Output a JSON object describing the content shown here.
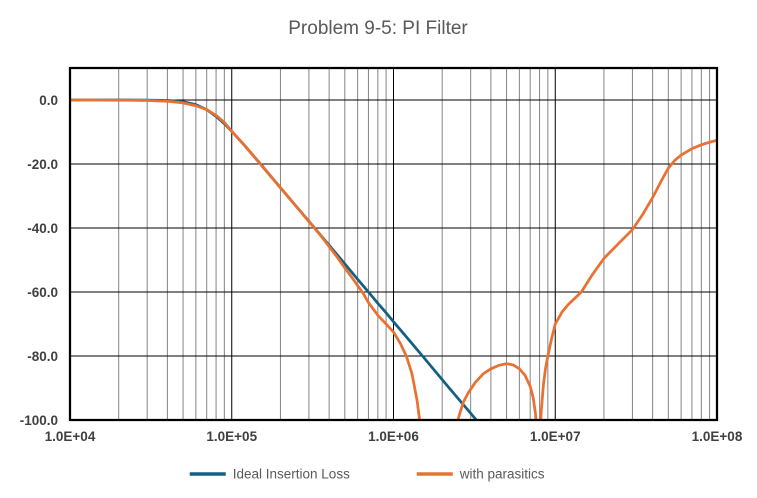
{
  "title": "Problem 9-5: PI Filter",
  "colors": {
    "series_ideal": "#156082",
    "series_parasitics": "#E97132",
    "major_grid": "#000000",
    "minor_grid": "#848484",
    "border": "#000000",
    "title_text": "#595959",
    "tick_text": "#404040",
    "background": "#ffffff"
  },
  "chart_data": {
    "type": "line",
    "title": "Problem 9-5: PI Filter",
    "xlabel": "",
    "ylabel": "",
    "x_scale": "log",
    "x_range": [
      10000,
      100000000
    ],
    "y_range": [
      -100,
      10
    ],
    "grid": {
      "major": "on",
      "minor_vertical_log": "on"
    },
    "legend_position": "bottom-center",
    "x_ticks": [
      10000,
      100000,
      1000000,
      10000000,
      100000000
    ],
    "x_tick_labels": [
      "1.0E+04",
      "1.0E+05",
      "1.0E+06",
      "1.0E+07",
      "1.0E+08"
    ],
    "y_ticks": [
      0,
      -20,
      -40,
      -60,
      -80,
      -100
    ],
    "y_tick_labels": [
      "0.0",
      "-20.0",
      "-40.0",
      "-60.0",
      "-80.0",
      "-100.0"
    ],
    "series": [
      {
        "name": "Ideal Insertion Loss",
        "color": "#156082",
        "points": [
          [
            10000.0,
            0
          ],
          [
            20000.0,
            -0.01
          ],
          [
            30000.0,
            -0.03
          ],
          [
            40000.0,
            -0.15
          ],
          [
            50000.0,
            -0.54
          ],
          [
            60000.0,
            -1.45
          ],
          [
            70000.0,
            -3.0
          ],
          [
            80000.0,
            -5.1
          ],
          [
            90000.0,
            -7.4
          ],
          [
            100000.0,
            -9.8
          ],
          [
            120000.0,
            -14.2
          ],
          [
            150000.0,
            -19.9
          ],
          [
            200000.0,
            -27.4
          ],
          [
            250000.0,
            -33.2
          ],
          [
            300000.0,
            -37.9
          ],
          [
            400000.0,
            -45.4
          ],
          [
            500000.0,
            -51.2
          ],
          [
            600000.0,
            -56.0
          ],
          [
            700000.0,
            -60.0
          ],
          [
            800000.0,
            -63.5
          ],
          [
            900000.0,
            -66.5
          ],
          [
            1000000.0,
            -69.3
          ],
          [
            1200000.0,
            -74.0
          ],
          [
            1500000.0,
            -79.8
          ],
          [
            2000000.0,
            -87.4
          ],
          [
            2500000.0,
            -93.2
          ],
          [
            3000000.0,
            -97.9
          ],
          [
            3300000.0,
            -100.4
          ],
          [
            3500000.0,
            -102.0
          ]
        ]
      },
      {
        "name": "with parasitics",
        "color": "#E97132",
        "points": [
          [
            10000.0,
            -0.02
          ],
          [
            15000.0,
            -0.03
          ],
          [
            20000.0,
            -0.06
          ],
          [
            30000.0,
            -0.15
          ],
          [
            40000.0,
            -0.4
          ],
          [
            50000.0,
            -0.9
          ],
          [
            60000.0,
            -1.8
          ],
          [
            70000.0,
            -3.0
          ],
          [
            80000.0,
            -4.8
          ],
          [
            90000.0,
            -7.0
          ],
          [
            100000.0,
            -9.8
          ],
          [
            120000.0,
            -14.2
          ],
          [
            150000.0,
            -20.0
          ],
          [
            200000.0,
            -27.4
          ],
          [
            250000.0,
            -33.2
          ],
          [
            300000.0,
            -38.0
          ],
          [
            350000.0,
            -42.0
          ],
          [
            400000.0,
            -45.8
          ],
          [
            450000.0,
            -49.2
          ],
          [
            500000.0,
            -52.5
          ],
          [
            550000.0,
            -55.3
          ],
          [
            600000.0,
            -58.0
          ],
          [
            650000.0,
            -60.5
          ],
          [
            700000.0,
            -63.3
          ],
          [
            800000.0,
            -67.3
          ],
          [
            900000.0,
            -70.0
          ],
          [
            1000000.0,
            -72.5
          ],
          [
            1100000.0,
            -76.0
          ],
          [
            1200000.0,
            -80.0
          ],
          [
            1300000.0,
            -85.5
          ],
          [
            1400000.0,
            -94.0
          ],
          [
            1450000.0,
            -100.0
          ],
          [
            1600000.0,
            -112.0
          ],
          [
            1900000.0,
            -125.0
          ],
          [
            2200000.0,
            -112.0
          ],
          [
            2450000.0,
            -102.0
          ],
          [
            2550000.0,
            -98.5
          ],
          [
            2700000.0,
            -94.5
          ],
          [
            2900000.0,
            -91.5
          ],
          [
            3200000.0,
            -88.3
          ],
          [
            3600000.0,
            -85.5
          ],
          [
            4000000.0,
            -84.0
          ],
          [
            4500000.0,
            -82.9
          ],
          [
            5000000.0,
            -82.4
          ],
          [
            5500000.0,
            -82.8
          ],
          [
            6000000.0,
            -84.0
          ],
          [
            6500000.0,
            -86.0
          ],
          [
            7000000.0,
            -89.5
          ],
          [
            7300000.0,
            -93.0
          ],
          [
            7550000.0,
            -98.0
          ],
          [
            7700000.0,
            -105.0
          ],
          [
            7900000.0,
            -118.0
          ],
          [
            8050000.0,
            -105.0
          ],
          [
            8200000.0,
            -97.0
          ],
          [
            8450000.0,
            -89.0
          ],
          [
            8700000.0,
            -84.0
          ],
          [
            9000000.0,
            -80.0
          ],
          [
            9500000.0,
            -74.5
          ],
          [
            10000000.0,
            -70.0
          ],
          [
            11000000.0,
            -66.3
          ],
          [
            12000000.0,
            -64.0
          ],
          [
            14500000.0,
            -60.0
          ],
          [
            17000000.0,
            -54.5
          ],
          [
            20000000.0,
            -49.5
          ],
          [
            25000000.0,
            -44.5
          ],
          [
            30000000.0,
            -40.5
          ],
          [
            35000000.0,
            -35.5
          ],
          [
            40000000.0,
            -30.5
          ],
          [
            45000000.0,
            -25.5
          ],
          [
            50000000.0,
            -21.3
          ],
          [
            55000000.0,
            -18.8
          ],
          [
            60000000.0,
            -17.2
          ],
          [
            70000000.0,
            -15.2
          ],
          [
            80000000.0,
            -14.0
          ],
          [
            90000000.0,
            -13.2
          ],
          [
            100000000.0,
            -12.6
          ]
        ]
      }
    ]
  }
}
